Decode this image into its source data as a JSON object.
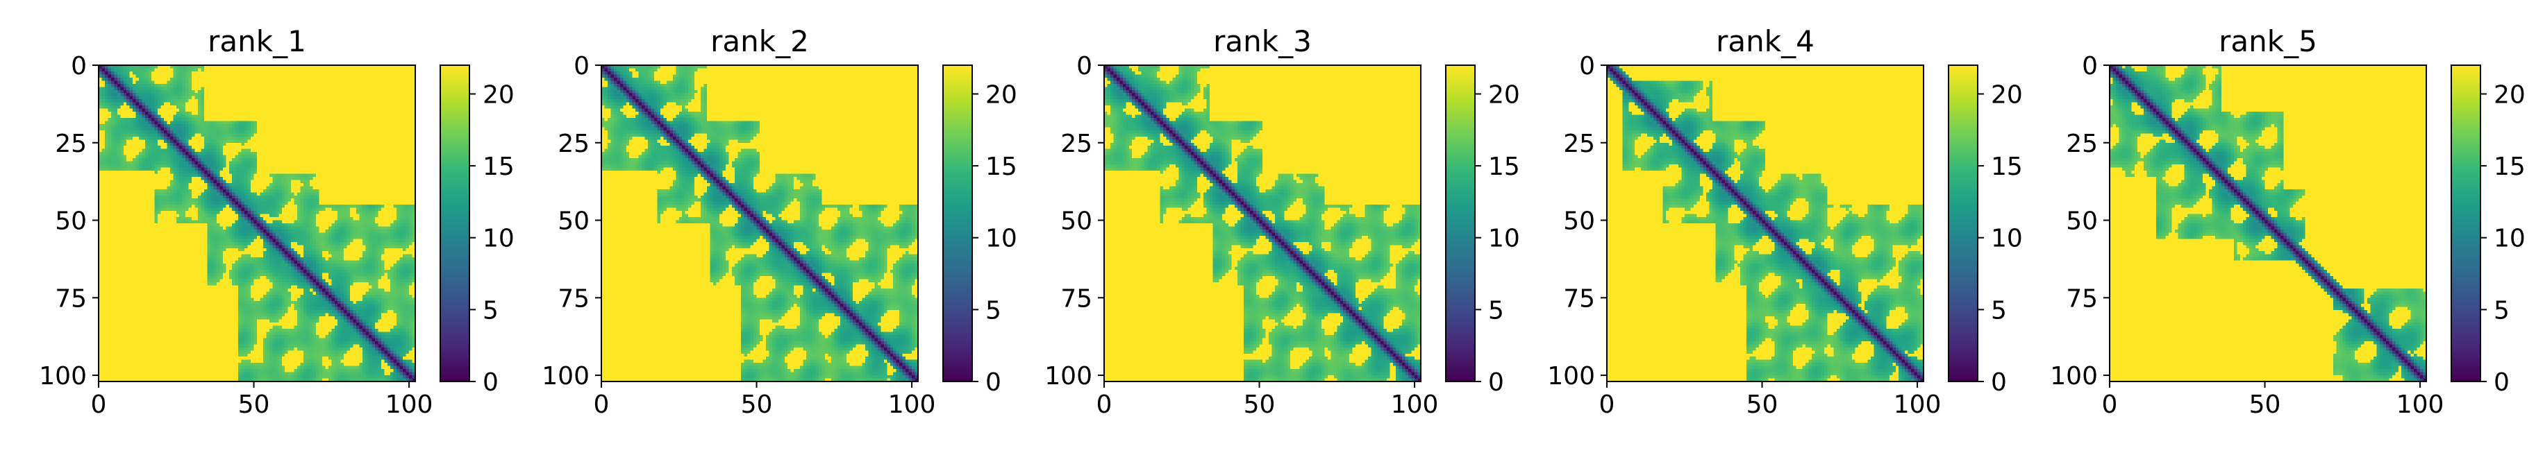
{
  "chart_data": [
    {
      "type": "heatmap",
      "title": "rank_1",
      "n": 102,
      "xlim": [
        0,
        102
      ],
      "ylim": [
        102,
        0
      ],
      "xticks": [
        0,
        50,
        100
      ],
      "yticks": [
        0,
        25,
        50,
        75,
        100
      ],
      "colorbar": {
        "ticks": [
          0,
          5,
          10,
          15,
          20
        ],
        "range": [
          0,
          22
        ],
        "colormap": "viridis"
      },
      "contact_blocks": [
        [
          0,
          33
        ],
        [
          18,
          50
        ],
        [
          35,
          70
        ],
        [
          45,
          102
        ],
        [
          0,
          12
        ],
        [
          85,
          102
        ],
        [
          20,
          35
        ],
        [
          38,
          60
        ]
      ]
    },
    {
      "type": "heatmap",
      "title": "rank_2",
      "n": 102,
      "xlim": [
        0,
        102
      ],
      "ylim": [
        102,
        0
      ],
      "xticks": [
        0,
        50,
        100
      ],
      "yticks": [
        0,
        25,
        50,
        75,
        100
      ],
      "colorbar": {
        "ticks": [
          0,
          5,
          10,
          15,
          20
        ],
        "range": [
          0,
          22
        ],
        "colormap": "viridis"
      },
      "contact_blocks": [
        [
          0,
          33
        ],
        [
          18,
          50
        ],
        [
          35,
          70
        ],
        [
          45,
          102
        ],
        [
          0,
          12
        ],
        [
          85,
          102
        ],
        [
          20,
          35
        ],
        [
          38,
          60
        ]
      ]
    },
    {
      "type": "heatmap",
      "title": "rank_3",
      "n": 102,
      "xlim": [
        0,
        102
      ],
      "ylim": [
        102,
        0
      ],
      "xticks": [
        0,
        50,
        100
      ],
      "yticks": [
        0,
        25,
        50,
        75,
        100
      ],
      "colorbar": {
        "ticks": [
          0,
          5,
          10,
          15,
          20
        ],
        "range": [
          0,
          22
        ],
        "colormap": "viridis"
      },
      "contact_blocks": [
        [
          0,
          33
        ],
        [
          18,
          50
        ],
        [
          35,
          70
        ],
        [
          45,
          102
        ],
        [
          0,
          12
        ],
        [
          85,
          102
        ],
        [
          20,
          35
        ],
        [
          38,
          60
        ]
      ]
    },
    {
      "type": "heatmap",
      "title": "rank_4",
      "n": 102,
      "xlim": [
        0,
        102
      ],
      "ylim": [
        102,
        0
      ],
      "xticks": [
        0,
        50,
        100
      ],
      "yticks": [
        0,
        25,
        50,
        75,
        100
      ],
      "colorbar": {
        "ticks": [
          0,
          5,
          10,
          15,
          20
        ],
        "range": [
          0,
          22
        ],
        "colormap": "viridis"
      },
      "contact_blocks": [
        [
          5,
          33
        ],
        [
          18,
          50
        ],
        [
          35,
          70
        ],
        [
          45,
          102
        ],
        [
          85,
          102
        ],
        [
          20,
          35
        ],
        [
          38,
          60
        ]
      ]
    },
    {
      "type": "heatmap",
      "title": "rank_5",
      "n": 102,
      "xlim": [
        0,
        102
      ],
      "ylim": [
        102,
        0
      ],
      "xticks": [
        0,
        50,
        100
      ],
      "yticks": [
        0,
        25,
        50,
        75,
        100
      ],
      "colorbar": {
        "ticks": [
          0,
          5,
          10,
          15,
          20
        ],
        "range": [
          0,
          22
        ],
        "colormap": "viridis"
      },
      "contact_blocks": [
        [
          0,
          35
        ],
        [
          15,
          55
        ],
        [
          40,
          62
        ],
        [
          72,
          102
        ]
      ]
    }
  ],
  "colors": {
    "viridis": [
      "#440154",
      "#482878",
      "#3e4989",
      "#31688e",
      "#26828e",
      "#1f9e89",
      "#35b779",
      "#6ece58",
      "#b5de2b",
      "#fde725"
    ]
  }
}
